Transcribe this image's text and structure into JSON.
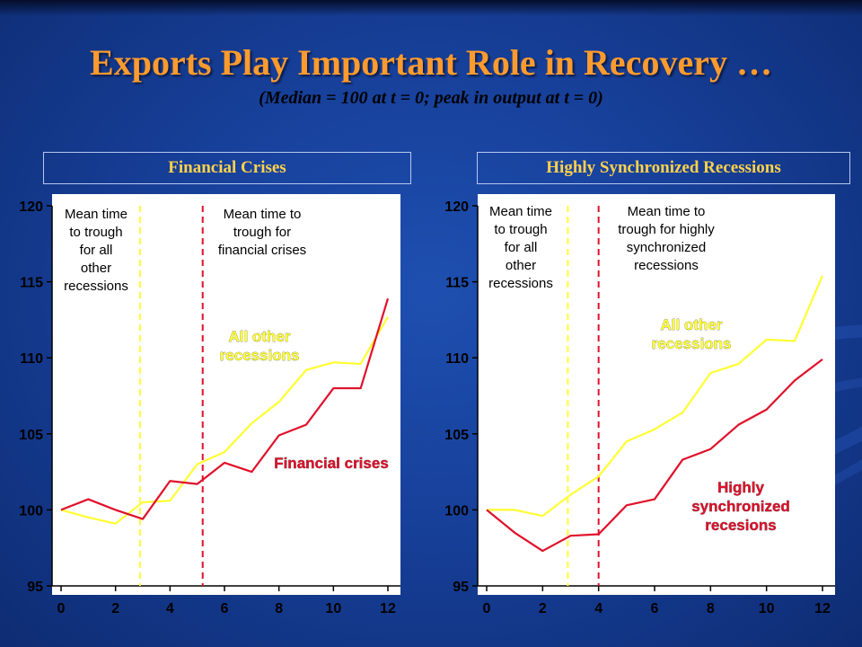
{
  "title": "Exports Play Important Role in Recovery …",
  "subtitle": "(Median = 100 at t = 0; peak in output at t = 0)",
  "chart_data": [
    {
      "type": "line",
      "title": "Financial Crises",
      "x": [
        0,
        1,
        2,
        3,
        4,
        5,
        6,
        7,
        8,
        9,
        10,
        11,
        12
      ],
      "ylim": [
        95,
        120
      ],
      "xlim": [
        0,
        12
      ],
      "xticks": [
        "0",
        "2",
        "4",
        "6",
        "8",
        "10",
        "12"
      ],
      "yticks": [
        "95",
        "100",
        "105",
        "110",
        "115",
        "120"
      ],
      "series": [
        {
          "name": "All other recessions",
          "color": "#ffff33",
          "values": [
            100,
            99.5,
            99.1,
            100.5,
            100.6,
            103,
            103.8,
            105.7,
            107.1,
            109.2,
            109.7,
            109.6,
            112.7
          ]
        },
        {
          "name": "Financial crises",
          "color": "#e0102a",
          "values": [
            100,
            100.7,
            100,
            99.4,
            101.9,
            101.7,
            103.1,
            102.5,
            104.9,
            105.6,
            108,
            108,
            113.9
          ]
        }
      ],
      "vlines": [
        {
          "x": 2.9,
          "color": "#ffff33",
          "label_lines": [
            "Mean time",
            "to trough",
            "for all",
            "other",
            "recessions"
          ]
        },
        {
          "x": 5.2,
          "color": "#e0102a",
          "label_lines": [
            "Mean time to",
            "trough for",
            "financial crises"
          ]
        }
      ],
      "series_labels": [
        {
          "lines": [
            "All other",
            "recessions"
          ],
          "color": "#ffff33"
        },
        {
          "lines": [
            "Financial crises"
          ],
          "color": "#e0102a"
        }
      ]
    },
    {
      "type": "line",
      "title": "Highly Synchronized Recessions",
      "x": [
        0,
        1,
        2,
        3,
        4,
        5,
        6,
        7,
        8,
        9,
        10,
        11,
        12
      ],
      "ylim": [
        95,
        120
      ],
      "xlim": [
        0,
        12
      ],
      "xticks": [
        "0",
        "2",
        "4",
        "6",
        "8",
        "10",
        "12"
      ],
      "yticks": [
        "95",
        "100",
        "105",
        "110",
        "115",
        "120"
      ],
      "series": [
        {
          "name": "All other recessions",
          "color": "#ffff33",
          "values": [
            100,
            100,
            99.6,
            101,
            102.2,
            104.5,
            105.3,
            106.4,
            109,
            109.6,
            111.2,
            111.1,
            115.4
          ]
        },
        {
          "name": "Highly synchronized recessions",
          "color": "#e0102a",
          "values": [
            100,
            98.5,
            97.3,
            98.3,
            98.4,
            100.3,
            100.7,
            103.3,
            104,
            105.6,
            106.6,
            108.5,
            109.9
          ]
        }
      ],
      "vlines": [
        {
          "x": 2.9,
          "color": "#ffff33",
          "label_lines": [
            "Mean time",
            "to trough",
            "for all",
            "other",
            "recessions"
          ]
        },
        {
          "x": 4.0,
          "color": "#e0102a",
          "label_lines": [
            "Mean time to",
            "trough for highly",
            "synchronized",
            "recessions"
          ]
        }
      ],
      "series_labels": [
        {
          "lines": [
            "All other",
            "recessions"
          ],
          "color": "#ffff33"
        },
        {
          "lines": [
            "Highly",
            "synchronized",
            "recesions"
          ],
          "color": "#e0102a"
        }
      ]
    }
  ]
}
